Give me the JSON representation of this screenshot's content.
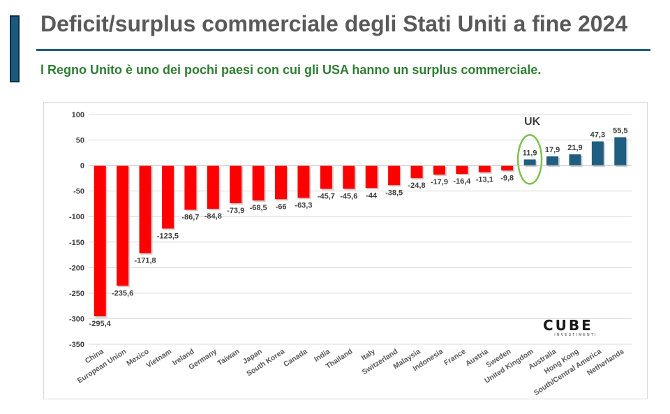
{
  "header": {
    "title": "Deficit/surplus commerciale degli Stati Uniti a fine 2024",
    "subtitle": "l Regno Unito è uno dei pochi paesi con cui gli USA hanno un surplus commerciale."
  },
  "annotation": {
    "label": "UK",
    "highlight_color": "#7cc24c"
  },
  "logo": {
    "main": "CUBE",
    "sub": "INVESTIMENTI"
  },
  "chart_data": {
    "type": "bar",
    "title": "",
    "xlabel": "",
    "ylabel": "",
    "ylim": [
      -350,
      100
    ],
    "yticks": [
      100,
      50,
      0,
      -50,
      -100,
      -150,
      -200,
      -250,
      -300,
      -350
    ],
    "grid": true,
    "categories": [
      "China",
      "European Union",
      "Mexico",
      "Vietnam",
      "Ireland",
      "Germany",
      "Taiwan",
      "Japan",
      "South Korea",
      "Canada",
      "India",
      "Thailand",
      "Italy",
      "Switzerland",
      "Malaysia",
      "Indonesia",
      "France",
      "Austria",
      "Sweden",
      "United Kingdom",
      "Australia",
      "Hong Kong",
      "South/Central America",
      "Netherlands"
    ],
    "values": [
      -295.4,
      -235.6,
      -171.8,
      -123.5,
      -86.7,
      -84.8,
      -73.9,
      -68.5,
      -66,
      -63.3,
      -45.7,
      -45.6,
      -44,
      -38.5,
      -24.8,
      -17.9,
      -16.4,
      -13.1,
      -9.8,
      11.9,
      17.9,
      21.9,
      47.3,
      55.5
    ],
    "labels": [
      "-295,4",
      "-235,6",
      "-171,8",
      "-123,5",
      "-86,7",
      "-84,8",
      "-73,9",
      "-68,5",
      "-66",
      "-63,3",
      "-45,7",
      "-45,6",
      "-44",
      "-38,5",
      "-24,8",
      "-17,9",
      "-16,4",
      "-13,1",
      "-9,8",
      "11,9",
      "17,9",
      "21,9",
      "47,3",
      "55,5"
    ],
    "colors": {
      "negative": "#ff0000",
      "positive": "#1f5e80"
    },
    "highlight_category": "United Kingdom"
  }
}
